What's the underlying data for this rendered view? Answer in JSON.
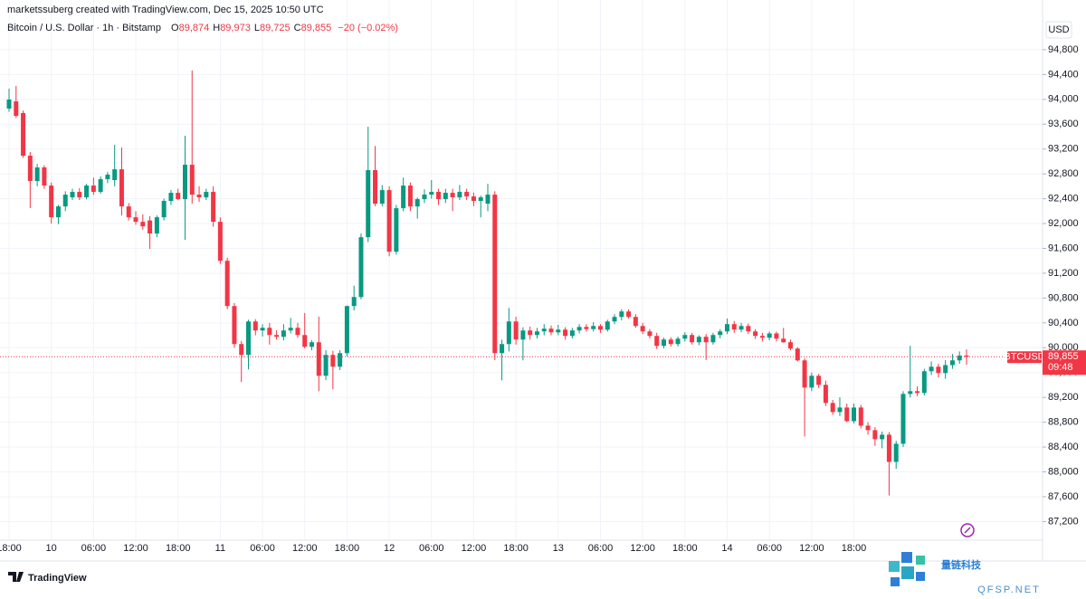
{
  "header": {
    "credit": "marketssuberg created with TradingView.com, Dec 15, 2025 10:50 UTC",
    "symbol": "Bitcoin / U.S. Dollar · 1h · Bitstamp",
    "ohlc": [
      {
        "label": "O",
        "value": "89,874"
      },
      {
        "label": "H",
        "value": "89,973"
      },
      {
        "label": "L",
        "value": "89,725"
      },
      {
        "label": "C",
        "value": "89,855"
      }
    ],
    "change": "−20 (−0.02%)"
  },
  "footer": {
    "brand": "TradingView",
    "watermark": "量链科技",
    "watermark_url": "QFSP.NET"
  },
  "chart_data": {
    "type": "candlestick",
    "ylabel": "USD",
    "up_color": "#089981",
    "down_color": "#f23645",
    "grid": true,
    "ylim": [
      86900,
      95280
    ],
    "yticks": [
      {
        "value": 87200,
        "label": "87,200"
      },
      {
        "value": 87600,
        "label": "87,600"
      },
      {
        "value": 88000,
        "label": "88,000"
      },
      {
        "value": 88400,
        "label": "88,400"
      },
      {
        "value": 88800,
        "label": "88,800"
      },
      {
        "value": 89200,
        "label": "89,200"
      },
      {
        "value": 89600,
        "label": "89,600"
      },
      {
        "value": 90000,
        "label": "90,000"
      },
      {
        "value": 90400,
        "label": "90,400"
      },
      {
        "value": 90800,
        "label": "90,800"
      },
      {
        "value": 91200,
        "label": "91,200"
      },
      {
        "value": 91600,
        "label": "91,600"
      },
      {
        "value": 92000,
        "label": "92,000"
      },
      {
        "value": 92400,
        "label": "92,400"
      },
      {
        "value": 92800,
        "label": "92,800"
      },
      {
        "value": 93200,
        "label": "93,200"
      },
      {
        "value": 93600,
        "label": "93,600"
      },
      {
        "value": 94000,
        "label": "94,000"
      },
      {
        "value": 94400,
        "label": "94,400"
      },
      {
        "value": 94800,
        "label": "94,800"
      }
    ],
    "categories": [
      "18:00",
      null,
      null,
      null,
      null,
      null,
      "10",
      null,
      null,
      null,
      null,
      null,
      "06:00",
      null,
      null,
      null,
      null,
      null,
      "12:00",
      null,
      null,
      null,
      null,
      null,
      "18:00",
      null,
      null,
      null,
      null,
      null,
      "11",
      null,
      null,
      null,
      null,
      null,
      "06:00",
      null,
      null,
      null,
      null,
      null,
      "12:00",
      null,
      null,
      null,
      null,
      null,
      "18:00",
      null,
      null,
      null,
      null,
      null,
      "12",
      null,
      null,
      null,
      null,
      null,
      "06:00",
      null,
      null,
      null,
      null,
      null,
      "12:00",
      null,
      null,
      null,
      null,
      null,
      "18:00",
      null,
      null,
      null,
      null,
      null,
      "13",
      null,
      null,
      null,
      null,
      null,
      "06:00",
      null,
      null,
      null,
      null,
      null,
      "12:00",
      null,
      null,
      null,
      null,
      null,
      "18:00",
      null,
      null,
      null,
      null,
      null,
      "14",
      null,
      null,
      null,
      null,
      null,
      "06:00",
      null,
      null,
      null,
      null,
      null,
      "12:00",
      null,
      null,
      null,
      null,
      null,
      "18:00",
      null,
      null,
      null,
      null,
      null,
      null,
      null,
      null,
      null,
      null,
      null,
      null,
      null,
      null,
      null,
      null
    ],
    "open": [
      93851,
      93968,
      93780,
      93093,
      92685,
      92904,
      92612,
      92101,
      92276,
      92422,
      92510,
      92422,
      92612,
      92510,
      92714,
      92700,
      92874,
      92276,
      92101,
      92028,
      92050,
      91839,
      92101,
      92364,
      92495,
      92393,
      92947,
      92466,
      92422,
      92510,
      92028,
      91400,
      90671,
      90059,
      89884,
      90423,
      90278,
      90321,
      90205,
      90176,
      90278,
      90321,
      90205,
      90015,
      90088,
      89548,
      89884,
      89694,
      89913,
      90671,
      90817,
      91780,
      92860,
      92320,
      92539,
      91546,
      92247,
      92612,
      92276,
      92393,
      92466,
      92510,
      92393,
      92495,
      92422,
      92510,
      92437,
      92364,
      92320,
      92466,
      89913,
      90059,
      90423,
      90132,
      90278,
      90205,
      90263,
      90307,
      90248,
      90292,
      90190,
      90278,
      90335,
      90300,
      90350,
      90290,
      90423,
      90496,
      90584,
      90496,
      90350,
      90263,
      90190,
      90030,
      90132,
      90059,
      90146,
      90205,
      90088,
      90176,
      90088,
      90205,
      90263,
      90380,
      90292,
      90350,
      90263,
      90190,
      90161,
      90230,
      90146,
      90088,
      89986,
      89796,
      89358,
      89548,
      89402,
      89110,
      88964,
      89037,
      88818,
      89037,
      88745,
      88672,
      88526,
      88599,
      88161,
      88453,
      89256,
      89300,
      89271,
      89621,
      89694,
      89592,
      89720,
      89796,
      89874
    ],
    "high": [
      94173,
      94216,
      93820,
      93150,
      92960,
      92940,
      92660,
      92300,
      92520,
      92560,
      92570,
      92640,
      92740,
      92760,
      92830,
      93268,
      93224,
      92330,
      92200,
      92150,
      92120,
      92130,
      92400,
      92540,
      92560,
      93414,
      94464,
      92600,
      92560,
      92600,
      92100,
      91450,
      90720,
      90110,
      90450,
      90460,
      90380,
      90400,
      90280,
      90380,
      90480,
      90400,
      90560,
      90120,
      90500,
      89960,
      89950,
      89960,
      90680,
      91000,
      91840,
      93560,
      93250,
      92620,
      92600,
      92300,
      92740,
      92660,
      92420,
      92550,
      92700,
      92560,
      92560,
      92560,
      92620,
      92560,
      92500,
      92450,
      92640,
      92520,
      90130,
      90642,
      90500,
      90330,
      90340,
      90320,
      90380,
      90360,
      90370,
      90330,
      90320,
      90380,
      90380,
      90410,
      90380,
      90450,
      90540,
      90620,
      90620,
      90540,
      90400,
      90300,
      90240,
      90160,
      90170,
      90180,
      90250,
      90240,
      90200,
      90220,
      90240,
      90300,
      90470,
      90430,
      90400,
      90390,
      90300,
      90240,
      90260,
      90260,
      90320,
      90130,
      90010,
      89830,
      89600,
      89580,
      89470,
      89160,
      89200,
      89100,
      89100,
      89080,
      88800,
      88720,
      88650,
      88640,
      88500,
      89300,
      90030,
      89380,
      89660,
      89780,
      89740,
      89800,
      89900,
      89940,
      89973
    ],
    "low": [
      93800,
      93700,
      93060,
      92250,
      92600,
      92560,
      92000,
      91990,
      92200,
      92380,
      92380,
      92390,
      92460,
      92480,
      92650,
      92600,
      92130,
      92050,
      91980,
      91900,
      91591,
      91780,
      92050,
      92300,
      92380,
      91736,
      92320,
      92350,
      92380,
      91950,
      91350,
      90620,
      90000,
      89446,
      89650,
      90200,
      90180,
      90050,
      90130,
      90120,
      90230,
      90160,
      89990,
      89960,
      89300,
      89480,
      89330,
      89640,
      89860,
      90600,
      90780,
      91700,
      92280,
      92280,
      91473,
      91500,
      92200,
      92200,
      92080,
      92330,
      92400,
      92300,
      92330,
      92200,
      92380,
      92380,
      92280,
      92100,
      92200,
      89800,
      89475,
      89940,
      90050,
      89796,
      90130,
      90150,
      90200,
      90200,
      90200,
      90130,
      90150,
      90230,
      90260,
      90260,
      90240,
      90260,
      90380,
      90440,
      90470,
      90320,
      90220,
      90150,
      89980,
      89990,
      90020,
      90020,
      90100,
      90050,
      90040,
      89800,
      90050,
      90150,
      90220,
      90240,
      90250,
      90220,
      90140,
      90100,
      90120,
      90100,
      90080,
      89960,
      89780,
      88570,
      89300,
      89350,
      89060,
      88920,
      88900,
      88800,
      88780,
      88700,
      88600,
      88420,
      88380,
      87621,
      88050,
      88400,
      89200,
      89220,
      89230,
      89560,
      89520,
      89500,
      89660,
      89740,
      89725
    ],
    "close": [
      93997,
      93734,
      93093,
      92685,
      92904,
      92612,
      92101,
      92276,
      92466,
      92510,
      92422,
      92612,
      92510,
      92714,
      92787,
      92874,
      92276,
      92101,
      92028,
      91955,
      91839,
      92101,
      92364,
      92495,
      92393,
      92947,
      92466,
      92422,
      92510,
      92028,
      91400,
      90671,
      90059,
      89884,
      90423,
      90278,
      90321,
      90205,
      90176,
      90278,
      90321,
      90205,
      90015,
      90088,
      89548,
      89884,
      89694,
      89913,
      90671,
      90817,
      91780,
      92860,
      92320,
      92539,
      91546,
      92247,
      92612,
      92276,
      92393,
      92466,
      92510,
      92393,
      92495,
      92422,
      92510,
      92437,
      92364,
      92422,
      92466,
      89913,
      90059,
      90423,
      90132,
      90278,
      90205,
      90263,
      90307,
      90248,
      90292,
      90190,
      90278,
      90335,
      90300,
      90350,
      90290,
      90423,
      90496,
      90584,
      90496,
      90350,
      90263,
      90190,
      90030,
      90132,
      90059,
      90146,
      90205,
      90088,
      90176,
      90088,
      90205,
      90263,
      90380,
      90292,
      90350,
      90263,
      90190,
      90161,
      90230,
      90146,
      90088,
      89986,
      89796,
      89358,
      89548,
      89402,
      89110,
      88964,
      89037,
      88818,
      89037,
      88745,
      88672,
      88526,
      88599,
      88161,
      88453,
      89256,
      89300,
      89271,
      89621,
      89694,
      89592,
      89720,
      89796,
      89874,
      89855
    ],
    "last_price": {
      "label": "BTCUSD",
      "value": 89855,
      "value_label": "89,855",
      "countdown": "09:48"
    }
  }
}
